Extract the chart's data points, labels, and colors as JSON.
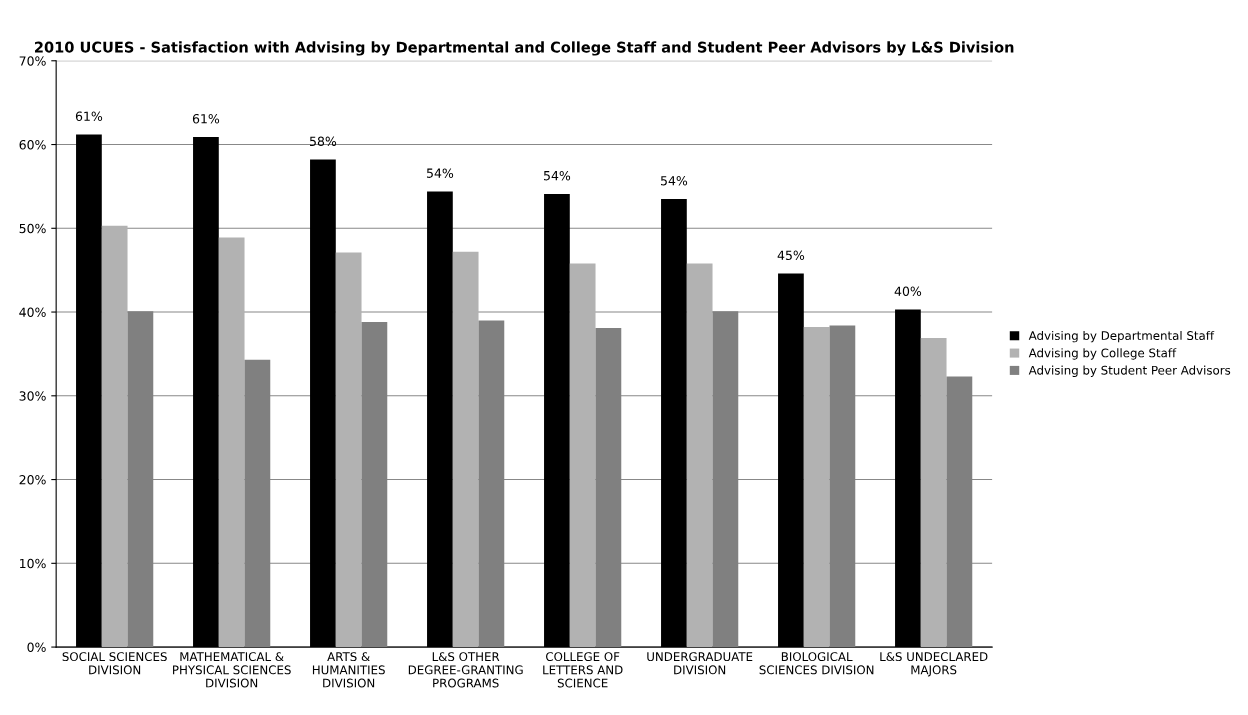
{
  "chart_data": {
    "type": "bar",
    "title": "2010 UCUES - Satisfaction with Advising by Departmental and College Staff and Student Peer Advisors by L&S Division",
    "categories": [
      "SOCIAL SCIENCES\nDIVISION",
      "MATHEMATICAL &\nPHYSICAL SCIENCES\nDIVISION",
      "ARTS &\nHUMANITIES\nDIVISION",
      "L&S OTHER\nDEGREE-GRANTING\nPROGRAMS",
      "COLLEGE OF\nLETTERS AND\nSCIENCE",
      "UNDERGRADUATE\nDIVISION",
      "BIOLOGICAL\nSCIENCES DIVISION",
      "L&S UNDECLARED\nMAJORS"
    ],
    "series": [
      {
        "name": "Advising by Departmental Staff",
        "color": "#000000",
        "values": [
          61.2,
          60.9,
          58.2,
          54.4,
          54.1,
          53.5,
          44.6,
          40.3
        ],
        "value_labels": [
          "61%",
          "61%",
          "58%",
          "54%",
          "54%",
          "54%",
          "45%",
          "40%"
        ]
      },
      {
        "name": "Advising by College Staff",
        "color": "#b2b2b2",
        "values": [
          50.3,
          48.9,
          47.1,
          47.2,
          45.8,
          45.8,
          38.2,
          36.9
        ]
      },
      {
        "name": "Advising by Student Peer Advisors",
        "color": "#808080",
        "values": [
          40.1,
          34.3,
          38.8,
          39.0,
          38.1,
          40.1,
          38.4,
          32.3
        ]
      }
    ],
    "ylim": [
      0,
      70
    ],
    "yticks": [
      {
        "value": 0,
        "label": "0%"
      },
      {
        "value": 10,
        "label": "10%"
      },
      {
        "value": 20,
        "label": "20%"
      },
      {
        "value": 30,
        "label": "30%"
      },
      {
        "value": 40,
        "label": "40%"
      },
      {
        "value": 50,
        "label": "50%"
      },
      {
        "value": 60,
        "label": "60%"
      },
      {
        "value": 70,
        "label": "70%"
      }
    ],
    "grid": "y",
    "legend": "right"
  }
}
